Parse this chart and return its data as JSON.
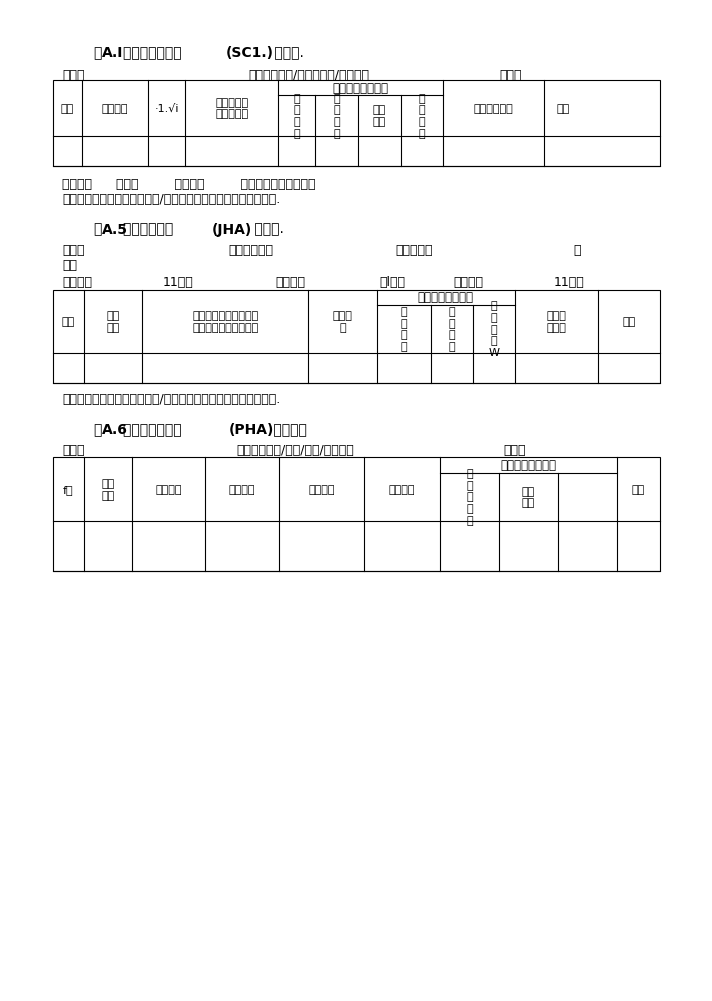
{
  "bg_color": "#ffffff",
  "title1_pre": "表",
  "title1_bold": "A.I",
  "title1_mid": "安全检查表分析 ",
  "title1_paren": "(SC1.)",
  "title1_post": " 记录表.",
  "info1_danwei": "单位：",
  "info1_fengxian": "风险点（区域/装丸，设法/设施）：",
  "info1_bianhao": "编号：",
  "t1_merge_text": "现有安全控制措施",
  "t1_col0": "序号",
  "t1_col1": "检查项目",
  "t1_col2": "·1.√i",
  "t1_col3": "不符合标准\n情况及后果",
  "t1_col4": "工\n程\n技\n术",
  "t1_col5": "管\n理\n措\n施",
  "t1_col6": "个体\n防护",
  "t1_col7": "教\n育\n培\n训",
  "t1_col8": "建议改进措施",
  "t1_col9": "备注",
  "t1_footer1": "填表人：      日期：         审核人：         日期：审定人：日期：",
  "t1_footer2": "填表说明：审核人为所在岗位/工序负责人，审定人为上级负责人.",
  "title2_pre": "表",
  "title2_bold": "A.5",
  "title2_mid": "工作危害分析 ",
  "title2_paren": "(JHA)",
  "title2_post": " 记录表.",
  "info2_danwei": "单位：",
  "info2_gangwei": "风险点岗位：",
  "info2_renwu": "工作任务：",
  "info2_bian": "编",
  "info2_hao": "号：",
  "info2_fenxiren": "分析人：",
  "info2_riqi1": "11期：",
  "info2_shenheren": "审核人：",
  "info2_riqi2": "『l期：",
  "info2_shendinger": "申定人：",
  "info2_riqi3": "11期：",
  "t2_merge_text": "现有安全控制措施",
  "t2_col0": "序号",
  "t2_col1": "作业\n步颖",
  "t2_col2": "风险或潜在事件（人、\n物、作业环境、管理）",
  "t2_col3": "主要后\n果",
  "t2_col4": "管\n理\n措\n施",
  "t2_col5": "个\n体\n防\n护",
  "t2_col6": "应\n急\n处\n置\nW",
  "t2_col7": "佳议改\n进措做",
  "t2_col8": "备注",
  "t2_footer": "填表说明：审核人为所在岗位/工序鱼贵人，审定人为上级负责人.",
  "title3_pre": "表",
  "title3_bold": "A.6",
  "title3_mid": "预先危险性分析 ",
  "title3_paren": "(PHA)",
  "title3_post": " 记录表。",
  "info3_danwei": "单位：",
  "info3_fengxian": "风险点（区域/装置/设的/设施）：",
  "info3_bianhao": "局号：",
  "t3_merge_text": "现有安全控制措施",
  "t3_col0": "f号",
  "t3_col1": "潜在\n事故",
  "t3_col2": "危险因素",
  "t3_col3": "触发条件",
  "t3_col4": "潜在事故",
  "t3_col5": "危险等级",
  "t3_col6": "管\n理\n措\n施\n《",
  "t3_col7": "个体\n防护",
  "t3_col8": "",
  "t3_col9": "备注"
}
